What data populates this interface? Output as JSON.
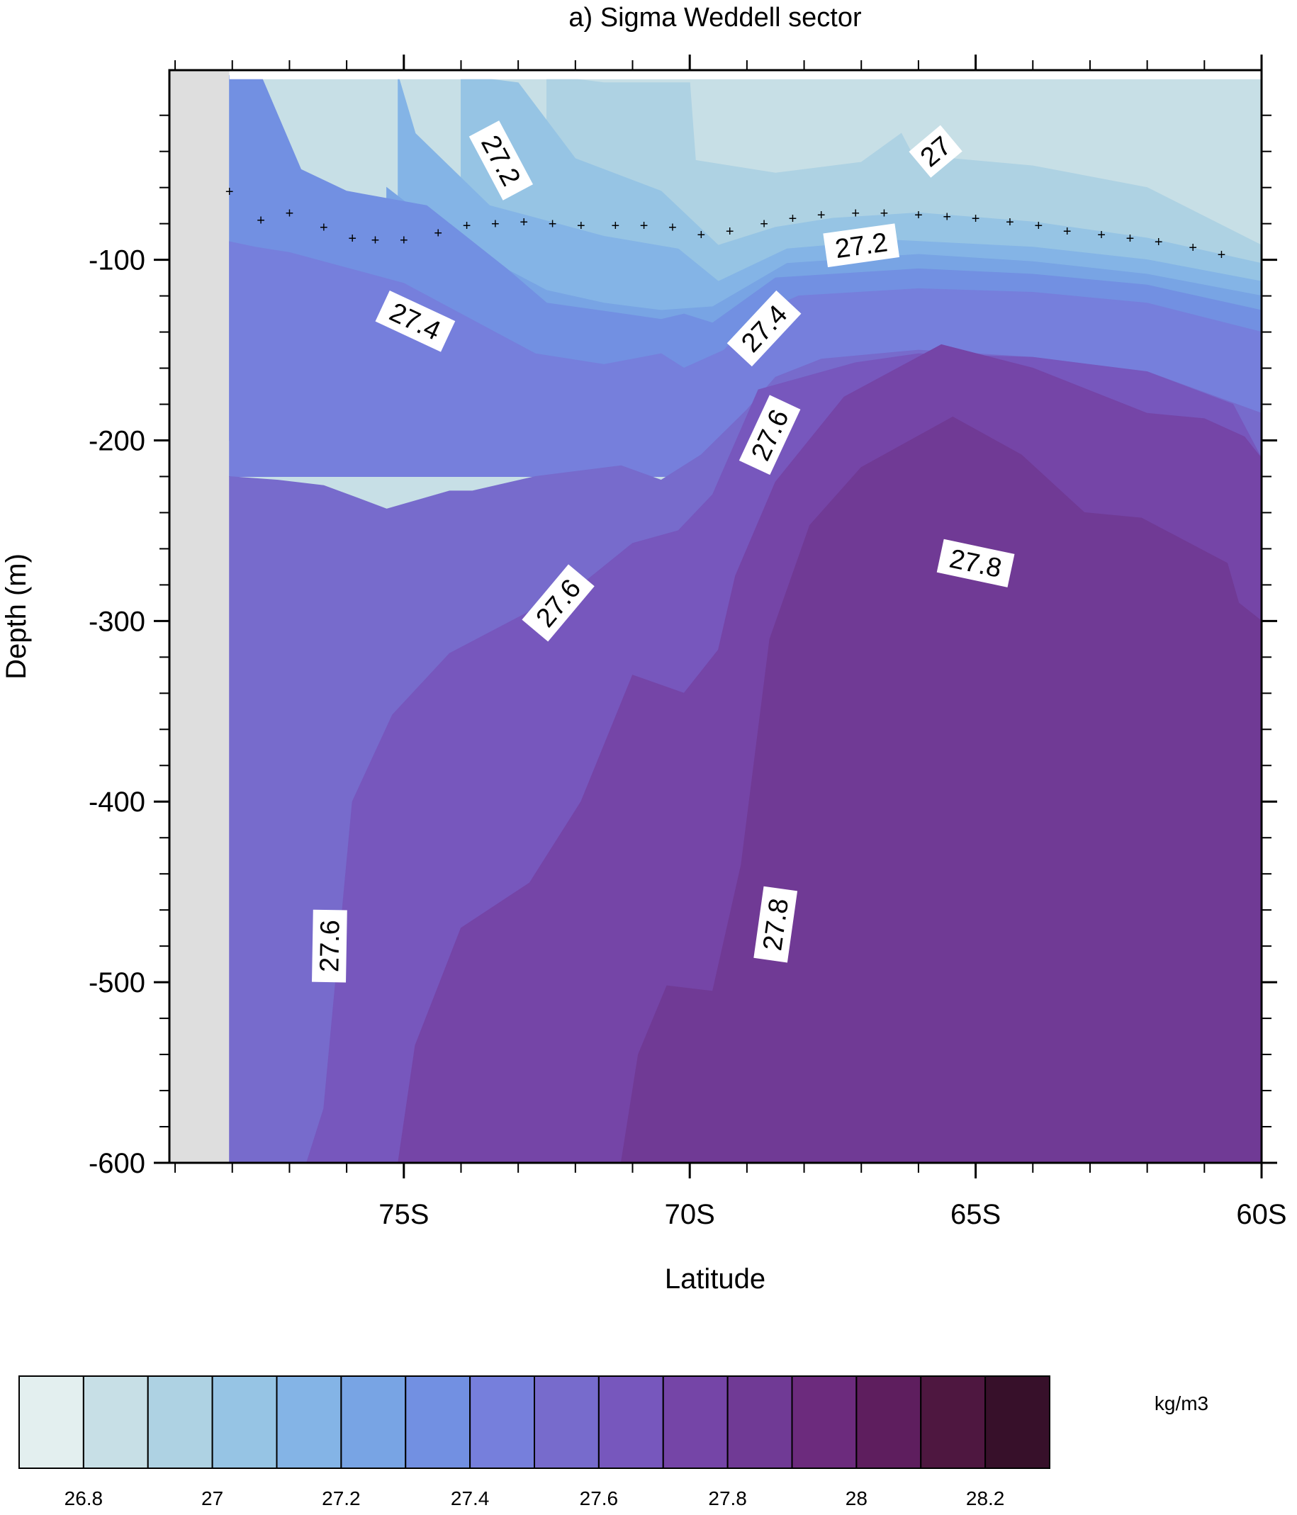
{
  "chart_data": {
    "type": "heatmap",
    "subtype": "filled-contour depth-latitude section",
    "title": "a) Sigma Weddell sector",
    "xlabel": "Latitude",
    "ylabel": "Depth (m)",
    "x_range": [
      -79.1,
      -60
    ],
    "y_range": [
      -600,
      5
    ],
    "x_ticks": [
      -75,
      -70,
      -65,
      -60
    ],
    "x_tick_labels": [
      "75S",
      "70S",
      "65S",
      "60S"
    ],
    "y_ticks": [
      -100,
      -200,
      -300,
      -400,
      -500,
      -600
    ],
    "y_tick_labels": [
      "-100",
      "-200",
      "-300",
      "-400",
      "-500",
      "-600"
    ],
    "missing_region": {
      "x_from": -79.1,
      "x_to": -78.05,
      "color": "#dedede"
    },
    "data_x_start": -78.05,
    "colorbar": {
      "unit_label": "kg/m3",
      "levels": [
        26.8,
        27,
        27.2,
        27.4,
        27.6,
        27.8,
        28,
        28.2
      ],
      "level_labels": [
        "26.8",
        "27",
        "27.2",
        "27.4",
        "27.6",
        "27.8",
        "28",
        "28.2"
      ],
      "colors": [
        "#e3efef",
        "#c7dfe6",
        "#aed2e3",
        "#96c4e4",
        "#84b4e6",
        "#78a4e4",
        "#7290e2",
        "#767fdc",
        "#776bcc",
        "#7757bd",
        "#7545a7",
        "#703a95",
        "#6c2b7d",
        "#5e1e5e",
        "#4e1740",
        "#37102a"
      ]
    },
    "contour_bands": [
      {
        "level": 27.0,
        "color": "#aed2e3",
        "boundary": [
          [
            -78.05,
            -200
          ],
          [
            -72.5,
            -200
          ],
          [
            -72.5,
            2
          ],
          [
            -71.5,
            -2
          ],
          [
            -70.0,
            -2
          ],
          [
            -69.9,
            -45
          ],
          [
            -68.5,
            -52
          ],
          [
            -67.0,
            -46
          ],
          [
            -66.3,
            -30
          ],
          [
            -66.1,
            -42
          ],
          [
            -64.0,
            -48
          ],
          [
            -62.0,
            -60
          ],
          [
            -60.0,
            -92
          ],
          [
            -60.0,
            -200
          ]
        ]
      },
      {
        "level": 27.2,
        "color": "#96c4e4",
        "boundary": [
          [
            -78.05,
            -200
          ],
          [
            -74.0,
            -200
          ],
          [
            -74.0,
            2
          ],
          [
            -73.0,
            -2
          ],
          [
            -72.0,
            -44
          ],
          [
            -70.5,
            -62
          ],
          [
            -69.5,
            -92
          ],
          [
            -68.5,
            -82
          ],
          [
            -67.5,
            -77
          ],
          [
            -66.0,
            -74
          ],
          [
            -64.0,
            -79
          ],
          [
            -62.0,
            -88
          ],
          [
            -60.0,
            -102
          ],
          [
            -60.0,
            -200
          ]
        ]
      },
      {
        "level": 27.3,
        "color": "#84b4e6",
        "boundary": [
          [
            -78.05,
            -200
          ],
          [
            -75.1,
            -200
          ],
          [
            -75.1,
            2
          ],
          [
            -74.8,
            -30
          ],
          [
            -73.5,
            -70
          ],
          [
            -71.5,
            -87
          ],
          [
            -70.2,
            -94
          ],
          [
            -69.5,
            -112
          ],
          [
            -68.3,
            -94
          ],
          [
            -66.5,
            -89
          ],
          [
            -64.0,
            -93
          ],
          [
            -62.0,
            -100
          ],
          [
            -60.0,
            -112
          ],
          [
            -60.0,
            -200
          ]
        ]
      },
      {
        "level": 27.4,
        "color": "#78a4e4",
        "boundary": [
          [
            -78.05,
            -200
          ],
          [
            -75.3,
            -200
          ],
          [
            -75.3,
            -60
          ],
          [
            -74.0,
            -92
          ],
          [
            -72.5,
            -117
          ],
          [
            -71.5,
            -124
          ],
          [
            -70.5,
            -128
          ],
          [
            -69.6,
            -126
          ],
          [
            -68.3,
            -102
          ],
          [
            -66.0,
            -97
          ],
          [
            -64.0,
            -101
          ],
          [
            -62.0,
            -108
          ],
          [
            -60.0,
            -120
          ],
          [
            -60.0,
            -200
          ]
        ]
      },
      {
        "level": 27.5,
        "color": "#7290e2",
        "boundary": [
          [
            -78.05,
            -200
          ],
          [
            -78.05,
            2
          ],
          [
            -77.5,
            2
          ],
          [
            -76.8,
            -50
          ],
          [
            -76.0,
            -62
          ],
          [
            -74.6,
            -70
          ],
          [
            -73.2,
            -105
          ],
          [
            -72.5,
            -124
          ],
          [
            -71.6,
            -128
          ],
          [
            -70.5,
            -133
          ],
          [
            -70.1,
            -130
          ],
          [
            -69.6,
            -135
          ],
          [
            -68.5,
            -110
          ],
          [
            -66.0,
            -105
          ],
          [
            -64.0,
            -108
          ],
          [
            -62.0,
            -114
          ],
          [
            -60.0,
            -128
          ],
          [
            -60.0,
            -200
          ]
        ]
      },
      {
        "level": 27.6,
        "color": "#767fdc",
        "boundary": [
          [
            -78.05,
            -220
          ],
          [
            -78.05,
            -90
          ],
          [
            -77.6,
            -93
          ],
          [
            -77.0,
            -96
          ],
          [
            -75.0,
            -113
          ],
          [
            -74.0,
            -130
          ],
          [
            -72.7,
            -152
          ],
          [
            -71.5,
            -158
          ],
          [
            -70.5,
            -152
          ],
          [
            -70.1,
            -160
          ],
          [
            -69.4,
            -150
          ],
          [
            -68.8,
            -130
          ],
          [
            -68.1,
            -120
          ],
          [
            -66.0,
            -116
          ],
          [
            -64.0,
            -118
          ],
          [
            -62.0,
            -124
          ],
          [
            -60.0,
            -140
          ],
          [
            -60.0,
            -220
          ]
        ]
      },
      {
        "level": 27.7,
        "color": "#776bcc",
        "boundary": [
          [
            -78.05,
            -600
          ],
          [
            -78.05,
            -220
          ],
          [
            -77.2,
            -222
          ],
          [
            -76.4,
            -225
          ],
          [
            -75.8,
            -232
          ],
          [
            -75.3,
            -238
          ],
          [
            -74.2,
            -228
          ],
          [
            -73.8,
            -228
          ],
          [
            -72.7,
            -220
          ],
          [
            -71.2,
            -214
          ],
          [
            -70.5,
            -222
          ],
          [
            -69.8,
            -208
          ],
          [
            -69.0,
            -183
          ],
          [
            -68.5,
            -165
          ],
          [
            -67.7,
            -155
          ],
          [
            -66.0,
            -150
          ],
          [
            -64.0,
            -154
          ],
          [
            -62.0,
            -162
          ],
          [
            -60.0,
            -185
          ],
          [
            -60.0,
            -600
          ]
        ]
      },
      {
        "level": 27.8,
        "color": "#7757bd",
        "boundary": [
          [
            -76.7,
            -600
          ],
          [
            -76.4,
            -570
          ],
          [
            -75.9,
            -400
          ],
          [
            -75.2,
            -352
          ],
          [
            -74.2,
            -318
          ],
          [
            -73.0,
            -298
          ],
          [
            -71.9,
            -280
          ],
          [
            -71.0,
            -257
          ],
          [
            -70.2,
            -250
          ],
          [
            -69.6,
            -230
          ],
          [
            -68.8,
            -172
          ],
          [
            -67.1,
            -157
          ],
          [
            -66.0,
            -152
          ],
          [
            -64.0,
            -154
          ],
          [
            -62.0,
            -162
          ],
          [
            -60.5,
            -180
          ],
          [
            -60.0,
            -210
          ],
          [
            -60.0,
            -600
          ]
        ]
      },
      {
        "level": 27.9,
        "color": "#7545a7",
        "boundary": [
          [
            -75.1,
            -600
          ],
          [
            -74.8,
            -535
          ],
          [
            -74.0,
            -470
          ],
          [
            -72.8,
            -445
          ],
          [
            -71.9,
            -400
          ],
          [
            -71.0,
            -330
          ],
          [
            -70.1,
            -340
          ],
          [
            -69.5,
            -316
          ],
          [
            -69.2,
            -275
          ],
          [
            -68.5,
            -223
          ],
          [
            -67.3,
            -176
          ],
          [
            -65.6,
            -147
          ],
          [
            -64.0,
            -160
          ],
          [
            -62.0,
            -185
          ],
          [
            -61.0,
            -188
          ],
          [
            -60.3,
            -198
          ],
          [
            -60.0,
            -210
          ],
          [
            -60.0,
            -600
          ]
        ]
      },
      {
        "level": 28.0,
        "color": "#703a95",
        "boundary": [
          [
            -71.2,
            -600
          ],
          [
            -70.9,
            -540
          ],
          [
            -70.4,
            -502
          ],
          [
            -69.6,
            -505
          ],
          [
            -69.1,
            -435
          ],
          [
            -68.6,
            -310
          ],
          [
            -67.9,
            -247
          ],
          [
            -67.0,
            -215
          ],
          [
            -65.4,
            -187
          ],
          [
            -64.2,
            -208
          ],
          [
            -63.1,
            -240
          ],
          [
            -62.1,
            -243
          ],
          [
            -60.6,
            -268
          ],
          [
            -60.4,
            -290
          ],
          [
            -60.0,
            -300
          ],
          [
            -60.0,
            -600
          ]
        ]
      }
    ],
    "mixed_layer_depth": {
      "marker": "+",
      "points": [
        [
          -78.05,
          -62
        ],
        [
          -77.5,
          -78
        ],
        [
          -77.0,
          -74
        ],
        [
          -76.4,
          -82
        ],
        [
          -75.9,
          -88
        ],
        [
          -75.5,
          -89
        ],
        [
          -75.0,
          -89
        ],
        [
          -74.4,
          -85
        ],
        [
          -73.9,
          -81
        ],
        [
          -73.4,
          -80
        ],
        [
          -72.9,
          -79
        ],
        [
          -72.4,
          -80
        ],
        [
          -71.9,
          -81
        ],
        [
          -71.3,
          -81
        ],
        [
          -70.8,
          -81
        ],
        [
          -70.3,
          -82
        ],
        [
          -69.8,
          -86
        ],
        [
          -69.3,
          -84
        ],
        [
          -68.7,
          -80
        ],
        [
          -68.2,
          -77
        ],
        [
          -67.7,
          -75
        ],
        [
          -67.1,
          -74
        ],
        [
          -66.6,
          -74
        ],
        [
          -66.0,
          -75
        ],
        [
          -65.5,
          -76
        ],
        [
          -65.0,
          -77
        ],
        [
          -64.4,
          -79
        ],
        [
          -63.9,
          -81
        ],
        [
          -63.4,
          -84
        ],
        [
          -62.8,
          -86
        ],
        [
          -62.3,
          -88
        ],
        [
          -61.8,
          -90
        ],
        [
          -61.2,
          -93
        ],
        [
          -60.7,
          -97
        ]
      ]
    },
    "contour_labels": [
      {
        "text": "27.2",
        "x": -73.3,
        "y": -45,
        "angle": 62
      },
      {
        "text": "27",
        "x": -65.7,
        "y": -40,
        "angle": -40
      },
      {
        "text": "27.2",
        "x": -67.0,
        "y": -92,
        "angle": -8
      },
      {
        "text": "27.4",
        "x": -74.8,
        "y": -134,
        "angle": 25
      },
      {
        "text": "27.4",
        "x": -68.7,
        "y": -138,
        "angle": -47
      },
      {
        "text": "27.6",
        "x": -68.6,
        "y": -197,
        "angle": -65
      },
      {
        "text": "27.6",
        "x": -72.3,
        "y": -290,
        "angle": -50
      },
      {
        "text": "27.8",
        "x": -65.0,
        "y": -268,
        "angle": 12
      },
      {
        "text": "27.8",
        "x": -68.5,
        "y": -468,
        "angle": -82
      },
      {
        "text": "27.6",
        "x": -76.3,
        "y": -480,
        "angle": -89
      }
    ]
  }
}
